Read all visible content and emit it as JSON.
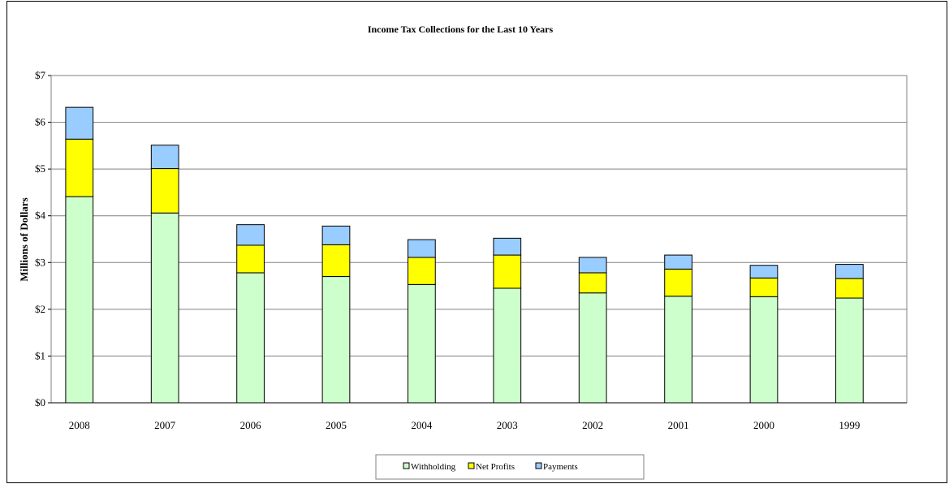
{
  "chart_data": {
    "type": "bar",
    "stacked": true,
    "title": "Income Tax Collections for the Last 10 Years",
    "xlabel": "",
    "ylabel": "Millions of Dollars",
    "categories": [
      "2008",
      "2007",
      "2006",
      "2005",
      "2004",
      "2003",
      "2002",
      "2001",
      "2000",
      "1999"
    ],
    "ylim": [
      0,
      7
    ],
    "yticks": [
      "$0",
      "$1",
      "$2",
      "$3",
      "$4",
      "$5",
      "$6",
      "$7"
    ],
    "grid": true,
    "legend_position": "bottom",
    "series": [
      {
        "name": "Withholding",
        "color": "#ccffcc",
        "values": [
          4.41,
          4.06,
          2.78,
          2.7,
          2.53,
          2.45,
          2.35,
          2.28,
          2.27,
          2.24
        ]
      },
      {
        "name": "Net Profits",
        "color": "#ffff00",
        "values": [
          1.23,
          0.95,
          0.59,
          0.68,
          0.58,
          0.71,
          0.43,
          0.58,
          0.4,
          0.42
        ]
      },
      {
        "name": "Payments",
        "color": "#99ccff",
        "values": [
          0.68,
          0.5,
          0.44,
          0.4,
          0.38,
          0.36,
          0.33,
          0.3,
          0.27,
          0.3
        ]
      }
    ]
  }
}
